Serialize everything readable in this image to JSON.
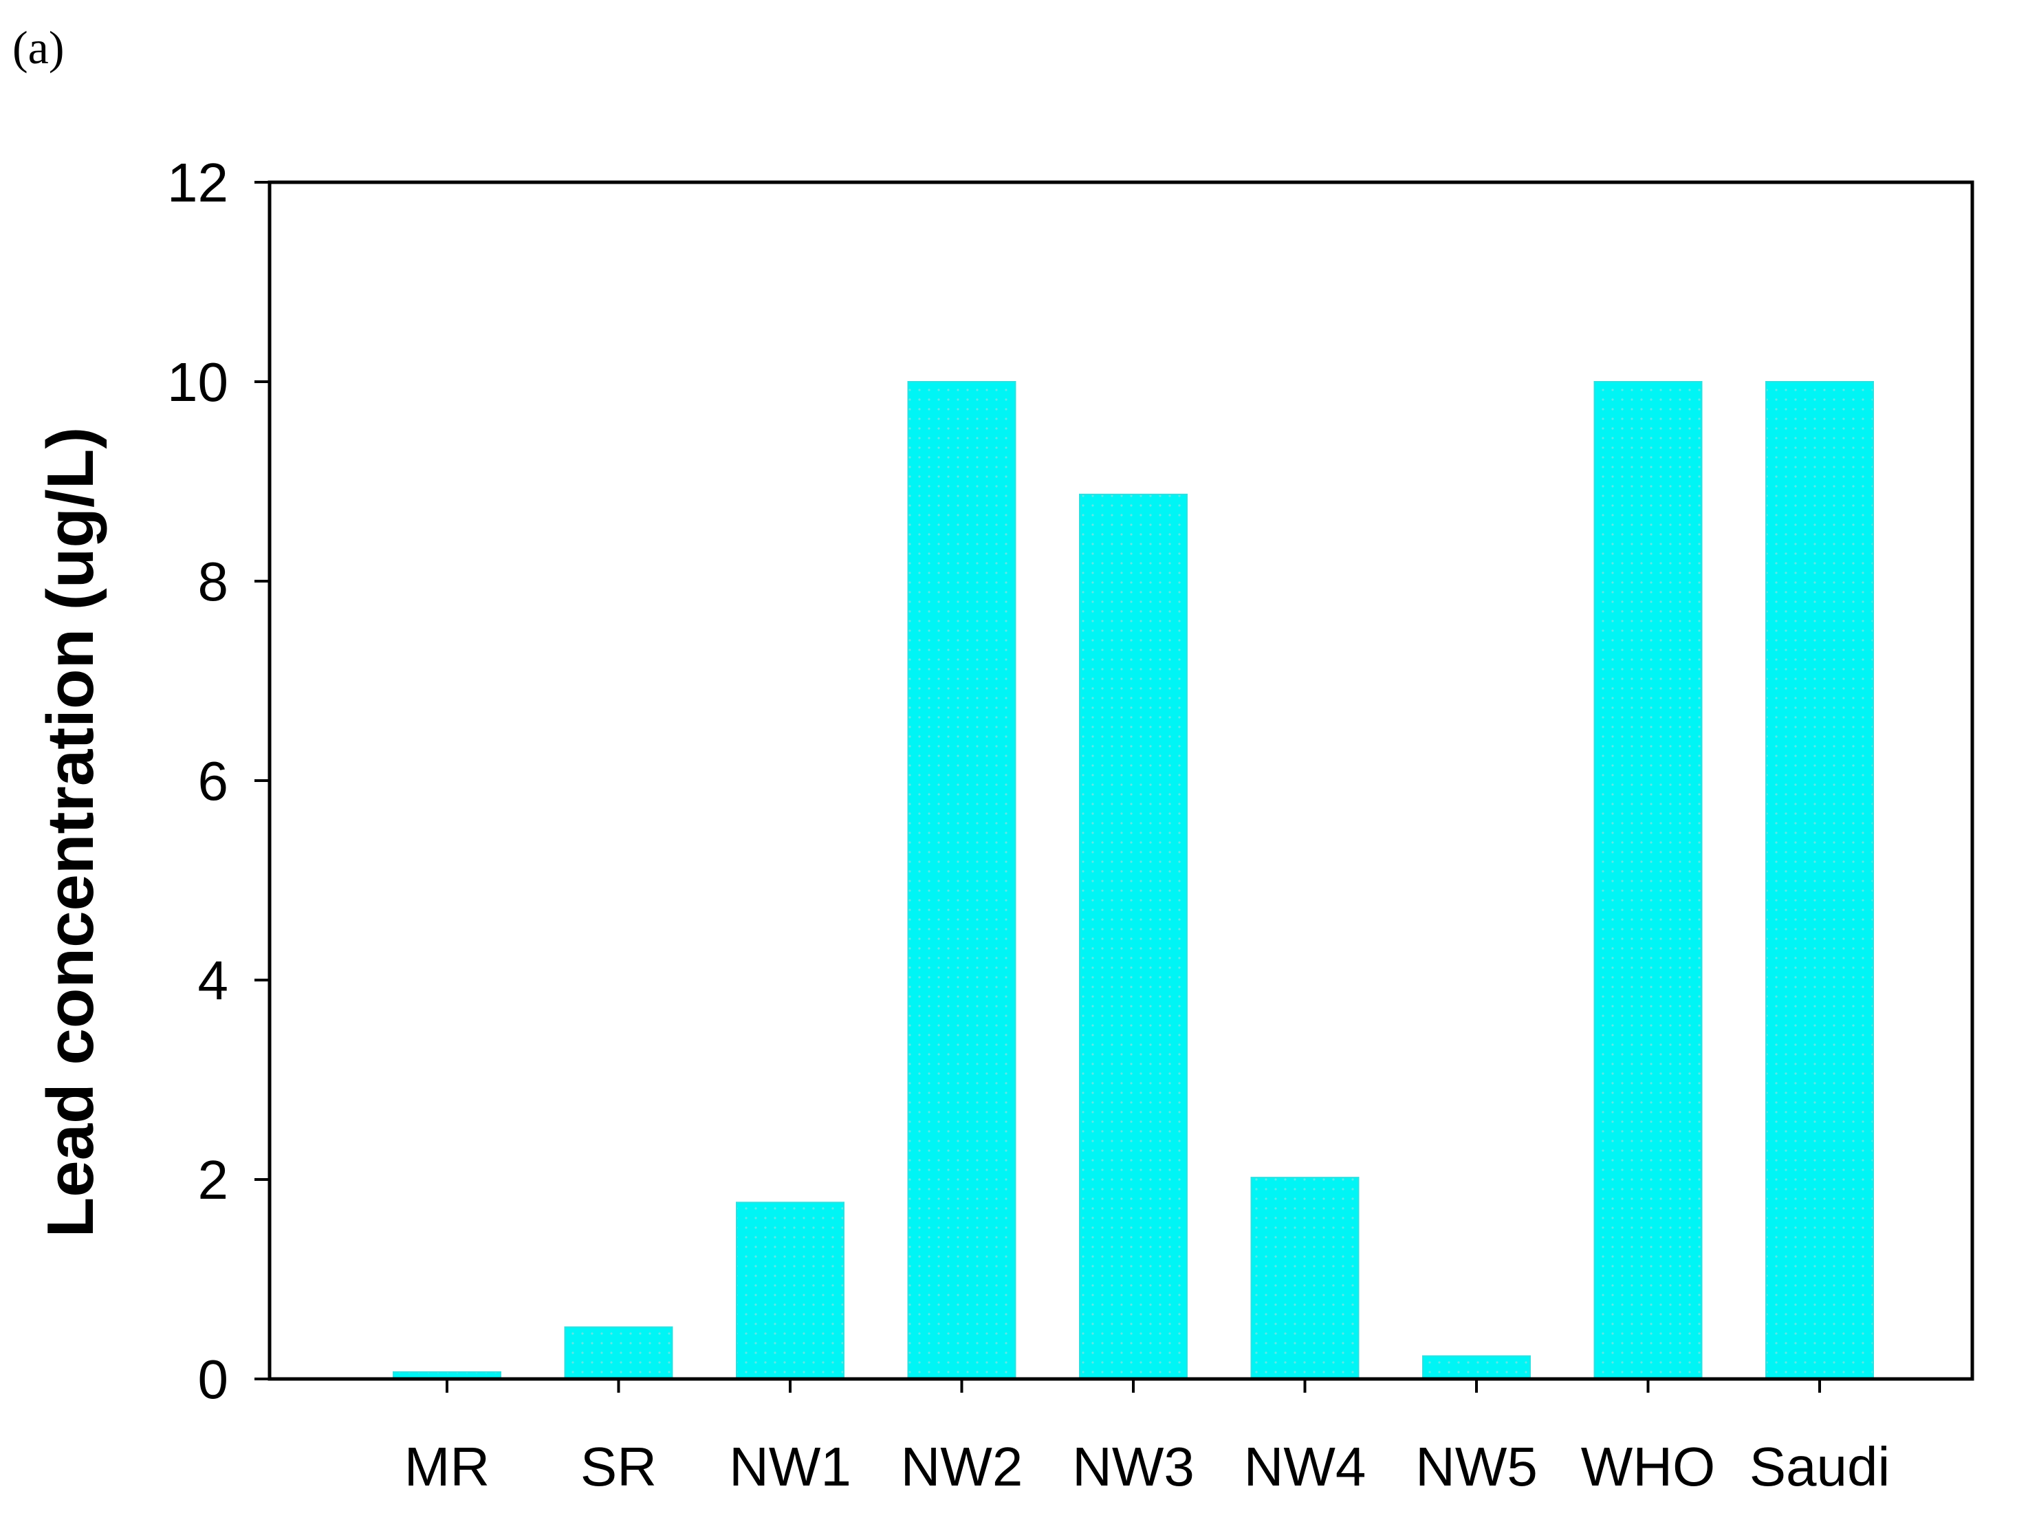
{
  "panel_label": "(a)",
  "chart_data": {
    "type": "bar",
    "title": "",
    "xlabel": "",
    "ylabel": "Lead concentration (ug/L)",
    "categories": [
      "MR",
      "SR",
      "NW1",
      "NW2",
      "NW3",
      "NW4",
      "NW5",
      "WHO",
      "Saudi"
    ],
    "values": [
      0.07,
      0.52,
      1.77,
      10.0,
      8.87,
      2.02,
      0.23,
      10.0,
      10.0
    ],
    "ylim": [
      0,
      12
    ],
    "yticks": [
      0,
      2,
      4,
      6,
      8,
      10,
      12
    ],
    "grid": false,
    "legend": "none",
    "bar_color": "#00f5f5",
    "bar_edge_color": "#2ee0e0",
    "axis_color": "#000000"
  }
}
